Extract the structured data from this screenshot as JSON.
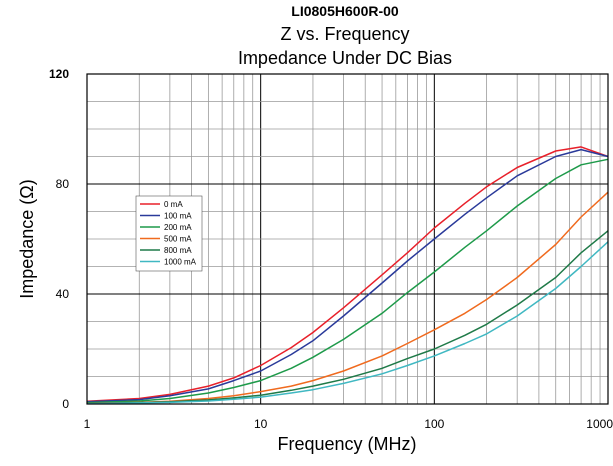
{
  "chart_data": {
    "type": "line",
    "title": "LI0805H600R-00",
    "subtitles": [
      "Z vs. Frequency",
      "Impedance Under DC Bias"
    ],
    "xlabel": "Frequency (MHz)",
    "ylabel": "Impedance (Ω)",
    "xscale": "log",
    "xlim": [
      1,
      1000
    ],
    "ylim": [
      0,
      120
    ],
    "x_ticks": [
      1,
      10,
      100,
      1000
    ],
    "x_tick_labels": [
      "1",
      "10",
      "100",
      "1000"
    ],
    "y_ticks": [
      0,
      40,
      80,
      120
    ],
    "y_tick_labels": [
      "0",
      "40",
      "80",
      "120"
    ],
    "grid": true,
    "legend_position": "left",
    "series": [
      {
        "name": "0 mA",
        "color": "#e8202a",
        "x": [
          1,
          2,
          3,
          5,
          7,
          10,
          15,
          20,
          30,
          50,
          70,
          100,
          150,
          200,
          300,
          500,
          700,
          1000
        ],
        "y": [
          1,
          2,
          3.5,
          6.5,
          9.5,
          14,
          20.5,
          26,
          35,
          47,
          55,
          64,
          73,
          79,
          86,
          92,
          93.5,
          90
        ]
      },
      {
        "name": "100 mA",
        "color": "#2a3a9a",
        "x": [
          1,
          2,
          3,
          5,
          7,
          10,
          15,
          20,
          30,
          50,
          70,
          100,
          150,
          200,
          300,
          500,
          700,
          1000
        ],
        "y": [
          0.8,
          1.6,
          3,
          5.5,
          8.5,
          12,
          18,
          23,
          32,
          44,
          52,
          60,
          69,
          75,
          83,
          90,
          92.5,
          90
        ]
      },
      {
        "name": "200 mA",
        "color": "#1e9a4a",
        "x": [
          1,
          2,
          3,
          5,
          7,
          10,
          15,
          20,
          30,
          50,
          70,
          100,
          150,
          200,
          300,
          500,
          700,
          1000
        ],
        "y": [
          0.5,
          1.1,
          2,
          4,
          6,
          8.5,
          13,
          17,
          23.5,
          33,
          40.5,
          48,
          57,
          63,
          72,
          82,
          87,
          89
        ]
      },
      {
        "name": "500 mA",
        "color": "#f06a1e",
        "x": [
          1,
          2,
          3,
          5,
          7,
          10,
          15,
          20,
          30,
          50,
          70,
          100,
          150,
          200,
          300,
          500,
          700,
          1000
        ],
        "y": [
          0.3,
          0.6,
          1,
          2,
          3,
          4.5,
          6.5,
          8.5,
          12,
          17.5,
          22,
          27,
          33,
          38,
          46,
          58,
          68,
          77
        ]
      },
      {
        "name": "800 mA",
        "color": "#1f7a48",
        "x": [
          1,
          2,
          3,
          5,
          7,
          10,
          15,
          20,
          30,
          50,
          70,
          100,
          150,
          200,
          300,
          500,
          700,
          1000
        ],
        "y": [
          0.2,
          0.5,
          0.8,
          1.5,
          2.2,
          3.2,
          5,
          6.5,
          9,
          13,
          16.5,
          20,
          25,
          29,
          36,
          46,
          55,
          63
        ]
      },
      {
        "name": "1000 mA",
        "color": "#40b8c2",
        "x": [
          1,
          2,
          3,
          5,
          7,
          10,
          15,
          20,
          30,
          50,
          70,
          100,
          150,
          200,
          300,
          500,
          700,
          1000
        ],
        "y": [
          0.1,
          0.4,
          0.6,
          1.1,
          1.7,
          2.5,
          4,
          5.2,
          7.5,
          11,
          14,
          17.5,
          22,
          25.5,
          32,
          42,
          50,
          59
        ]
      }
    ]
  }
}
